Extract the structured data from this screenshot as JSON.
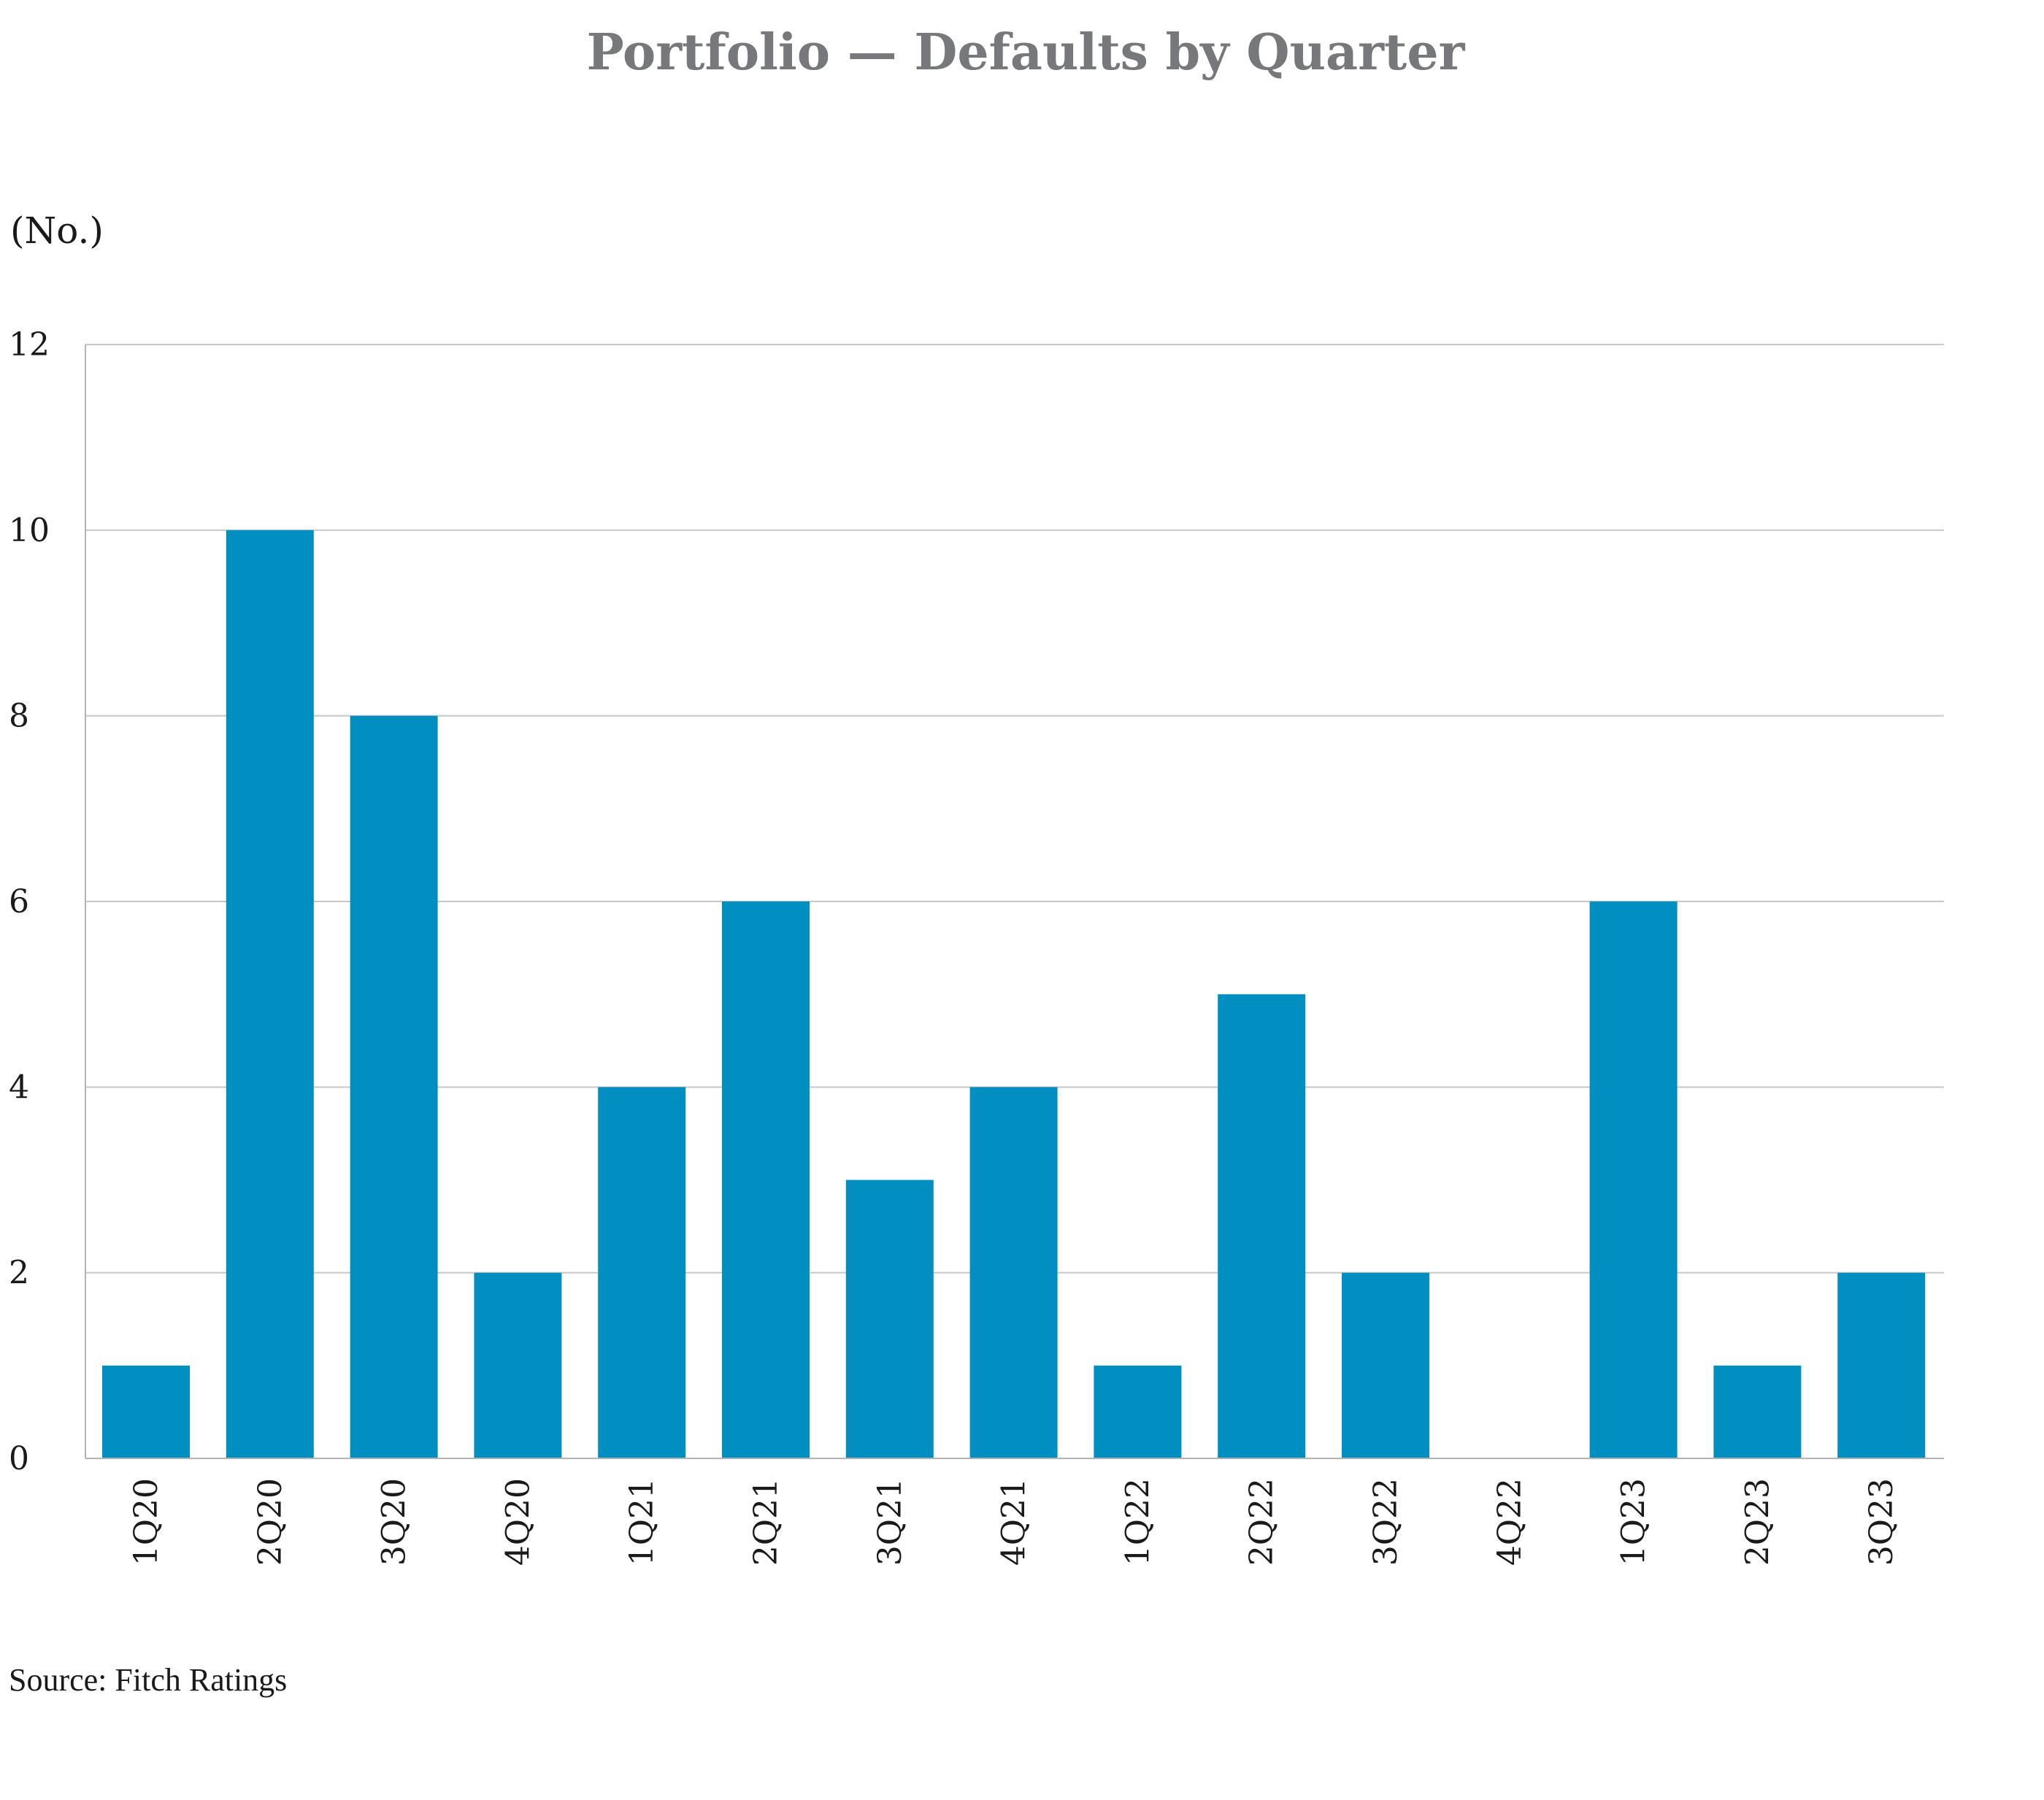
{
  "chart_data": {
    "type": "bar",
    "title": "Portfolio — Defaults by Quarter",
    "unit_label": "(No.)",
    "xlabel": "",
    "ylabel": "",
    "categories": [
      "1Q20",
      "2Q20",
      "3Q20",
      "4Q20",
      "1Q21",
      "2Q21",
      "3Q21",
      "4Q21",
      "1Q22",
      "2Q22",
      "3Q22",
      "4Q22",
      "1Q23",
      "2Q23",
      "3Q23"
    ],
    "values": [
      1,
      10,
      8,
      2,
      4,
      6,
      3,
      4,
      1,
      5,
      2,
      0,
      6,
      1,
      2
    ],
    "ylim": [
      0,
      12
    ],
    "yticks": [
      0,
      2,
      4,
      6,
      8,
      10,
      12
    ],
    "grid": true,
    "legend": "none",
    "bar_color": "#008fc0",
    "source": "Source: Fitch Ratings"
  }
}
